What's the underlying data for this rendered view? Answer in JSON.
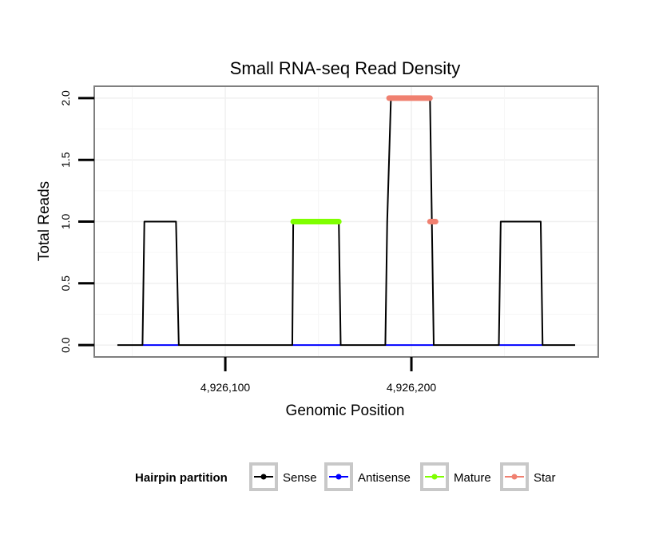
{
  "chart_data": {
    "type": "line",
    "title": "Small RNA-seq Read Density",
    "xlabel": "Genomic Position",
    "ylabel": "Total Reads",
    "xlim": [
      4926030,
      4926300
    ],
    "ylim": [
      -0.09,
      2.09
    ],
    "x_ticks": [
      {
        "value": 4926100,
        "label": "4,926,100"
      },
      {
        "value": 4926200,
        "label": "4,926,200"
      }
    ],
    "y_ticks": [
      {
        "value": 0.0,
        "label": "0.0"
      },
      {
        "value": 0.5,
        "label": "0.5"
      },
      {
        "value": 1.0,
        "label": "1.0"
      },
      {
        "value": 1.5,
        "label": "1.5"
      },
      {
        "value": 2.0,
        "label": "2.0"
      }
    ],
    "grid": true,
    "legend": {
      "title": "Hairpin partition",
      "position": "bottom",
      "entries": [
        {
          "name": "Sense",
          "color": "#000000"
        },
        {
          "name": "Antisense",
          "color": "#0000ff"
        },
        {
          "name": "Mature",
          "color": "#7fff00"
        },
        {
          "name": "Star",
          "color": "#f08070"
        }
      ]
    },
    "series": [
      {
        "name": "Sense",
        "color": "#000000",
        "x": [
          4926042,
          4926055.5,
          4926056.5,
          4926073.5,
          4926075,
          4926136,
          4926136.5,
          4926161,
          4926162,
          4926186,
          4926187,
          4926189,
          4926210,
          4926212,
          4926247,
          4926248,
          4926269.5,
          4926270.5,
          4926288
        ],
        "y": [
          0,
          0,
          1,
          1,
          0,
          0,
          1,
          1,
          0,
          0,
          1,
          2,
          2,
          0,
          0,
          1,
          1,
          0,
          0
        ]
      },
      {
        "name": "Antisense",
        "color": "#0000ff",
        "x": [
          4926055.5,
          4926075,
          4926136,
          4926162,
          4926186,
          4926212,
          4926247,
          4926270.5
        ],
        "y": [
          0,
          0,
          0,
          0,
          0,
          0,
          0,
          0
        ],
        "segments": [
          [
            0,
            1
          ],
          [
            2,
            3
          ],
          [
            4,
            5
          ],
          [
            6,
            7
          ]
        ]
      },
      {
        "name": "Mature",
        "color": "#7fff00",
        "x": [
          4926136.5,
          4926161
        ],
        "y": [
          1,
          1
        ]
      },
      {
        "name": "Star",
        "color": "#f08070",
        "x": [
          4926188,
          4926210,
          4926210,
          4926213
        ],
        "y": [
          2,
          2,
          1,
          1
        ],
        "segments": [
          [
            0,
            1
          ],
          [
            2,
            3
          ]
        ]
      }
    ]
  }
}
